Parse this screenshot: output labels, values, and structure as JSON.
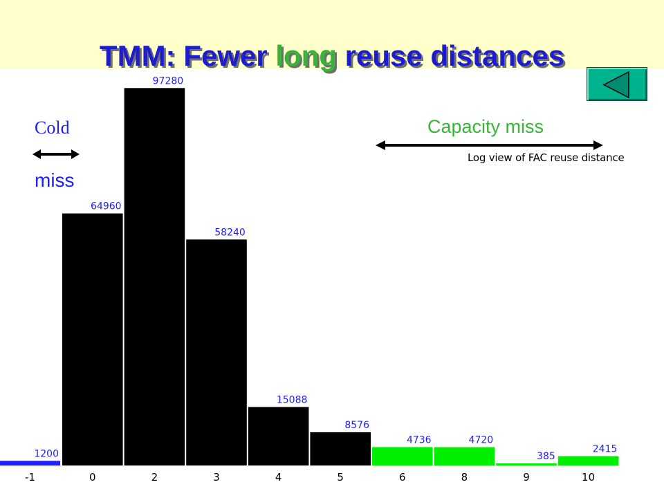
{
  "slide": {
    "title_prefix": "TMM: Fewer ",
    "title_highlight": "long",
    "title_suffix": " reuse distances",
    "cold_label": "Cold",
    "miss_label": "miss",
    "capacity_label": "Capacity miss"
  },
  "colors": {
    "title": "#1d1dcc",
    "title_highlight": "#3bb33b",
    "bar_black": "#000000",
    "bar_green": "#00ee00",
    "bar_blue": "#1d1dff",
    "value_label": "#1d1dff",
    "capacity_label": "#3bb33b",
    "button": "#00b38f"
  },
  "icons": {
    "back_button": "triangle-left-icon"
  },
  "chart_data": {
    "type": "bar",
    "title": "Log view of FAC reuse distance",
    "xlabel": "",
    "ylabel": "",
    "ylim": [
      0,
      100000
    ],
    "grid": false,
    "categories": [
      "-1",
      "0",
      "2",
      "3",
      "4",
      "5",
      "6",
      "8",
      "9",
      "10"
    ],
    "values": [
      1200,
      64960,
      97280,
      58240,
      15088,
      8576,
      4736,
      4720,
      385,
      2415
    ],
    "value_labels": [
      "1200",
      "64960",
      "97280",
      "58240",
      "15088",
      "8576",
      "4736",
      "4720",
      "385",
      "2415"
    ],
    "bar_colors": [
      "#1d1dff",
      "#000000",
      "#000000",
      "#000000",
      "#000000",
      "#000000",
      "#00ee00",
      "#00ee00",
      "#00ee00",
      "#00ee00"
    ]
  }
}
